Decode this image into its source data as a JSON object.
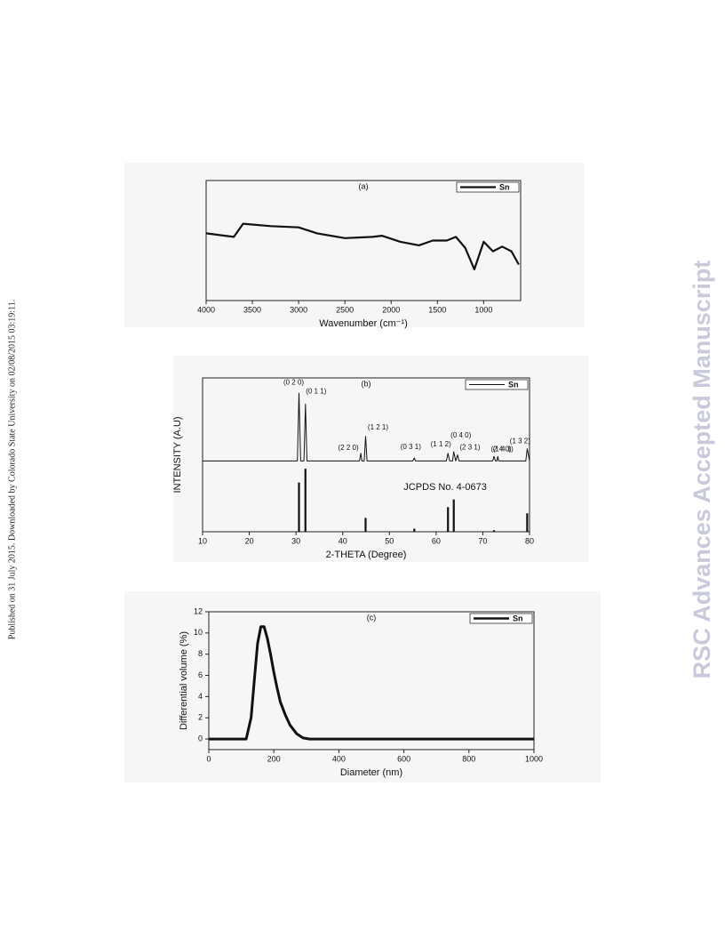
{
  "side_note": "Published on 31 July 2015. Downloaded by Colorado State University on 02/08/2015 03:19:11.",
  "watermark": "RSC Advances Accepted Manuscript",
  "chart_data": [
    {
      "type": "line",
      "title": "(a)",
      "x_label": "Wavenumber (cm⁻¹)",
      "xlim": [
        4000,
        600
      ],
      "xticks": [
        4000,
        3500,
        3000,
        2500,
        2000,
        1500,
        1000
      ],
      "ylim": [
        0,
        100
      ],
      "legend": "upper right",
      "x": [
        4000,
        3700,
        3600,
        3300,
        3000,
        2800,
        2500,
        2200,
        2100,
        1900,
        1700,
        1550,
        1400,
        1300,
        1200,
        1100,
        1000,
        900,
        800,
        700,
        620
      ],
      "series": [
        {
          "name": "Sn",
          "color": "#111111",
          "values": [
            56,
            53,
            64,
            62,
            61,
            56,
            52,
            53,
            54,
            49,
            46,
            50,
            50,
            53,
            44,
            26,
            49,
            41,
            45,
            41,
            30
          ]
        }
      ]
    },
    {
      "type": "line",
      "title": "(b)",
      "x_label": "2-THETA (Degree)",
      "y_label": "INTENSITY (A.U)",
      "xlim": [
        10,
        80
      ],
      "xticks": [
        10,
        20,
        30,
        40,
        50,
        60,
        70,
        80
      ],
      "ylim": [
        0,
        100
      ],
      "legend": "upper right",
      "x": [
        10,
        30.3,
        30.64,
        31.0,
        31.7,
        32.02,
        32.35,
        43.6,
        43.87,
        44.1,
        44.6,
        44.9,
        45.2,
        55.0,
        55.33,
        55.6,
        62.2,
        62.54,
        62.9,
        63.5,
        63.78,
        64.2,
        64.58,
        64.9,
        72.1,
        72.4,
        72.7,
        73.0,
        73.2,
        73.4,
        79.2,
        79.5,
        80
      ],
      "series": [
        {
          "name": "Sn",
          "color": "#111111",
          "values": [
            46,
            46,
            90,
            46,
            46,
            83,
            46,
            46,
            51,
            46,
            46,
            62,
            46,
            46,
            48,
            46,
            46,
            51,
            46,
            46,
            52,
            46,
            50,
            46,
            46,
            49,
            46,
            46,
            49,
            46,
            46,
            54,
            46
          ]
        }
      ],
      "annotations": [
        {
          "text": "(0 2 0)",
          "x": 30.64
        },
        {
          "text": "(0 1 1)",
          "x": 32.02
        },
        {
          "text": "(2 2 0)",
          "x": 43.87
        },
        {
          "text": "(1 2 1)",
          "x": 44.9
        },
        {
          "text": "(0 3 1)",
          "x": 55.33
        },
        {
          "text": "(1 1 2)",
          "x": 62.54
        },
        {
          "text": "(0 4 0)",
          "x": 63.78
        },
        {
          "text": "(2 3 1)",
          "x": 64.58
        },
        {
          "text": "(2 4 0)",
          "x": 72.4
        },
        {
          "text": "(1 4 1)",
          "x": 73.2
        },
        {
          "text": "(1 3 2)",
          "x": 79.5
        }
      ],
      "reference": {
        "name": "JCPDS No. 4-0673",
        "x": [
          30.64,
          32.02,
          44.9,
          55.33,
          62.54,
          63.78,
          72.4,
          79.5
        ],
        "values": [
          32,
          41,
          9,
          2,
          16,
          21,
          1,
          12
        ]
      }
    },
    {
      "type": "line",
      "title": "(c)",
      "x_label": "Diameter (nm)",
      "y_label": "Differential volume (%)",
      "xlim": [
        0,
        1000
      ],
      "xticks": [
        0,
        200,
        400,
        600,
        800,
        1000
      ],
      "ylim": [
        -1,
        12
      ],
      "yticks": [
        0,
        2,
        4,
        6,
        8,
        10,
        12
      ],
      "legend": "upper right",
      "x": [
        0,
        115,
        130,
        140,
        150,
        160,
        170,
        180,
        190,
        200,
        210,
        220,
        235,
        250,
        270,
        290,
        310,
        1000
      ],
      "series": [
        {
          "name": "Sn",
          "color": "#111111",
          "values": [
            0,
            0,
            2,
            5.5,
            9,
            10.6,
            10.6,
            9.5,
            8,
            6.3,
            4.8,
            3.5,
            2.3,
            1.3,
            0.5,
            0.1,
            0,
            0
          ]
        }
      ]
    }
  ]
}
